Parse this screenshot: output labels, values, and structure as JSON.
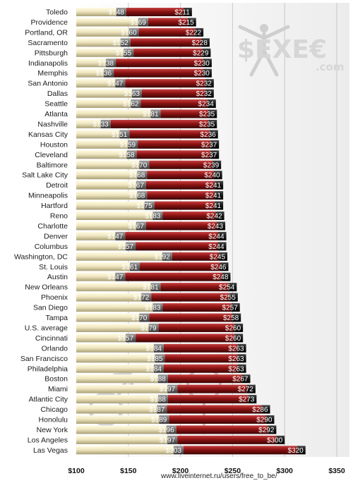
{
  "chart_data": {
    "type": "bar",
    "categories": [
      "Toledo",
      "Providence",
      "Portland, OR",
      "Sacramento",
      "Pittsburgh",
      "Indianapolis",
      "Memphis",
      "San Antonio",
      "Dallas",
      "Seattle",
      "Atlanta",
      "Nashville",
      "Kansas City",
      "Houston",
      "Cleveland",
      "Baltimore",
      "Salt Lake City",
      "Detroit",
      "Minneapolis",
      "Hartford",
      "Reno",
      "Charlotte",
      "Denver",
      "Columbus",
      "Washington, DC",
      "St. Louis",
      "Austin",
      "New Orleans",
      "Phoenix",
      "San Diego",
      "Tampa",
      "U.S. average",
      "Cincinnati",
      "Orlando",
      "San Francisco",
      "Philadelphia",
      "Boston",
      "Miami",
      "Atlantic City",
      "Chicago",
      "Honolulu",
      "New York",
      "Los Angeles",
      "Las Vegas"
    ],
    "series": [
      {
        "values": [
          148,
          169,
          160,
          152,
          155,
          138,
          136,
          147,
          163,
          162,
          181,
          133,
          151,
          159,
          158,
          170,
          168,
          167,
          168,
          175,
          183,
          167,
          147,
          157,
          192,
          161,
          147,
          181,
          172,
          183,
          170,
          179,
          157,
          184,
          185,
          184,
          188,
          197,
          188,
          187,
          189,
          196,
          197,
          203
        ],
        "labels": [
          "$148",
          "$169",
          "$160",
          "$152",
          "$155",
          "$138",
          "$136",
          "$147",
          "$163",
          "$162",
          "$181",
          "$133",
          "$151",
          "$159",
          "$158",
          "$170",
          "$168",
          "$167",
          "$168",
          "$175",
          "$183",
          "$167",
          "$147",
          "$157",
          "$192",
          "$161",
          "$147",
          "$181",
          "$172",
          "$183",
          "$170",
          "$179",
          "$157",
          "$184",
          "$185",
          "$184",
          "$188",
          "$197",
          "$188",
          "$187",
          "$189",
          "$196",
          "$197",
          "$203"
        ]
      },
      {
        "values": [
          211,
          215,
          222,
          228,
          229,
          230,
          230,
          232,
          232,
          234,
          235,
          235,
          236,
          237,
          237,
          239,
          240,
          241,
          241,
          241,
          242,
          243,
          244,
          244,
          245,
          246,
          248,
          254,
          255,
          257,
          258,
          260,
          260,
          263,
          263,
          263,
          267,
          272,
          273,
          286,
          290,
          292,
          300,
          320
        ],
        "labels": [
          "$211",
          "$215",
          "$222",
          "$228",
          "$229",
          "$230",
          "$230",
          "$232",
          "$232",
          "$234",
          "$235",
          "$235",
          "$236",
          "$237",
          "$237",
          "$239",
          "$240",
          "$241",
          "$241",
          "$241",
          "$242",
          "$243",
          "$244",
          "$244",
          "$245",
          "$246",
          "$248",
          "$254",
          "$255",
          "$257",
          "$258",
          "$260",
          "$260",
          "$263",
          "$263",
          "$263",
          "$267",
          "$272",
          "$273",
          "$286",
          "$290",
          "$292",
          "$300",
          "$320"
        ]
      }
    ],
    "xlim": [
      100,
      350
    ],
    "xticks": [
      "$100",
      "$150",
      "$200",
      "$250",
      "$300",
      "$350"
    ],
    "grid": true,
    "colors": {
      "series1": "#ece3b8",
      "series2": "#8b1010",
      "series1_end": "#6e6e6e",
      "series2_end": "#111111"
    }
  },
  "watermark": {
    "logo": "$EXE€",
    "domain": ".com"
  },
  "source_url": "www.liveinternet.ru/users/free_to_be/"
}
